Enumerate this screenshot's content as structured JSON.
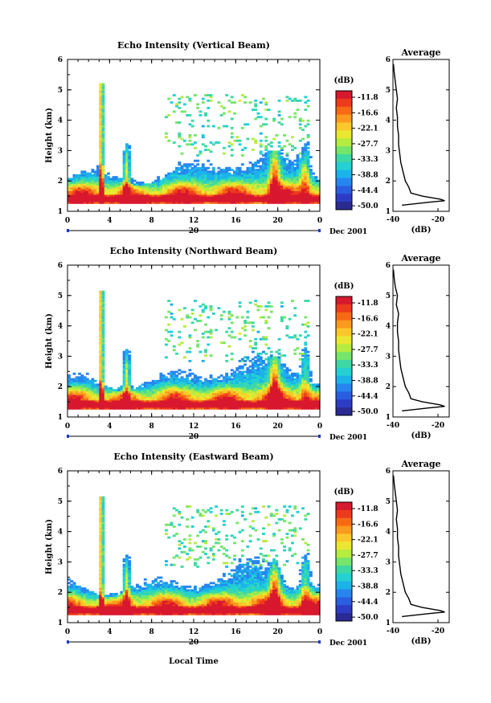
{
  "colorbar": {
    "unit": "(dB)",
    "labels": [
      "-11.8",
      "-16.6",
      "-22.1",
      "-27.7",
      "-33.3",
      "-38.8",
      "-44.4",
      "-50.0"
    ],
    "colors": [
      "#d8182e",
      "#ee3a1c",
      "#f66a16",
      "#fa9a1e",
      "#fbc82a",
      "#eae82e",
      "#b6ec40",
      "#76e66a",
      "#3ed8a4",
      "#22d2d2",
      "#1cb2ea",
      "#2686ee",
      "#2a5ee0",
      "#2c3cc4",
      "#2a2a92"
    ]
  },
  "date_label": "Dec 2001",
  "day_label": "20",
  "xlabel": "Local Time",
  "average_title": "Average",
  "average_xlabel": "(dB)",
  "chart_data": [
    {
      "type": "heatmap",
      "title": "Echo Intensity (Vertical Beam)",
      "xlabel": "Local Time",
      "ylabel": "Height (km)",
      "xticks": [
        "0",
        "4",
        "8",
        "12",
        "16",
        "20",
        "0"
      ],
      "xlim": [
        0,
        24
      ],
      "yticks": [
        "1",
        "2",
        "3",
        "4",
        "5",
        "6"
      ],
      "ylim": [
        1,
        6
      ],
      "zlim": [
        -50.0,
        -11.8
      ],
      "unit": "dB",
      "average_profile": {
        "xticks": [
          "-40",
          "-20"
        ],
        "xlim": [
          -40,
          -15
        ],
        "height": [
          1.2,
          1.3,
          1.35,
          1.4,
          1.5,
          1.6,
          1.8,
          2.0,
          2.3,
          2.6,
          2.9,
          3.2,
          3.5,
          3.8,
          4.1,
          4.4,
          4.7,
          5.0,
          5.3,
          5.6,
          5.85
        ],
        "value": [
          -36,
          -24,
          -17,
          -19,
          -27,
          -32,
          -33,
          -34.5,
          -35.5,
          -36.5,
          -37,
          -37.5,
          -37.5,
          -38,
          -38,
          -38.5,
          -38,
          -38.5,
          -39,
          -39.5,
          -39.8
        ]
      }
    },
    {
      "type": "heatmap",
      "title": "Echo Intensity (Northward Beam)",
      "xlabel": "Local Time",
      "ylabel": "Height (km)",
      "xticks": [
        "0",
        "4",
        "8",
        "12",
        "16",
        "20",
        "0"
      ],
      "xlim": [
        0,
        24
      ],
      "yticks": [
        "1",
        "2",
        "3",
        "4",
        "5",
        "6"
      ],
      "ylim": [
        1,
        6
      ],
      "zlim": [
        -50.0,
        -11.8
      ],
      "unit": "dB",
      "average_profile": {
        "xticks": [
          "-40",
          "-20"
        ],
        "xlim": [
          -40,
          -15
        ],
        "height": [
          1.2,
          1.3,
          1.35,
          1.4,
          1.5,
          1.6,
          1.8,
          2.0,
          2.3,
          2.6,
          2.9,
          3.2,
          3.5,
          3.8,
          4.1,
          4.4,
          4.7,
          5.0,
          5.3,
          5.6,
          5.85
        ],
        "value": [
          -36,
          -24,
          -17,
          -19,
          -27,
          -32,
          -33,
          -34.5,
          -35.5,
          -36.5,
          -37,
          -37.5,
          -37.5,
          -38,
          -38,
          -37.5,
          -38.5,
          -38,
          -39,
          -39.5,
          -39.8
        ]
      }
    },
    {
      "type": "heatmap",
      "title": "Echo Intensity (Eastward Beam)",
      "xlabel": "Local Time",
      "ylabel": "Height (km)",
      "xticks": [
        "0",
        "4",
        "8",
        "12",
        "16",
        "20",
        "0"
      ],
      "xlim": [
        0,
        24
      ],
      "yticks": [
        "1",
        "2",
        "3",
        "4",
        "5",
        "6"
      ],
      "ylim": [
        1,
        6
      ],
      "zlim": [
        -50.0,
        -11.8
      ],
      "unit": "dB",
      "average_profile": {
        "xticks": [
          "-40",
          "-20"
        ],
        "xlim": [
          -40,
          -15
        ],
        "height": [
          1.2,
          1.3,
          1.35,
          1.4,
          1.5,
          1.6,
          1.8,
          2.0,
          2.3,
          2.6,
          2.9,
          3.2,
          3.5,
          3.8,
          4.1,
          4.4,
          4.7,
          5.0,
          5.3,
          5.6,
          5.85
        ],
        "value": [
          -36,
          -24,
          -17,
          -19,
          -27,
          -32,
          -33,
          -34.5,
          -35.5,
          -36.5,
          -37,
          -37.5,
          -37.5,
          -38,
          -38,
          -38.5,
          -38,
          -38.5,
          -39,
          -39.5,
          -39.8
        ]
      }
    }
  ]
}
